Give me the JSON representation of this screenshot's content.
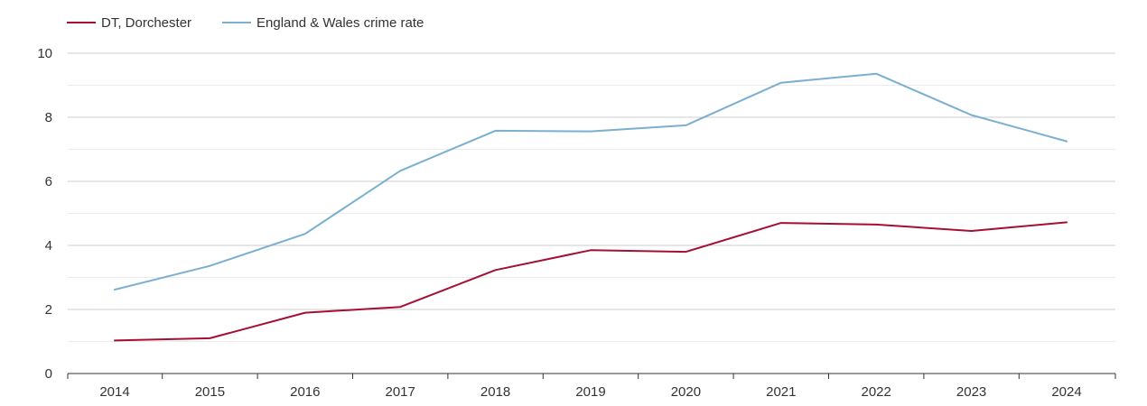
{
  "chart_data": {
    "type": "line",
    "title": "",
    "xlabel": "",
    "ylabel": "",
    "x": [
      2014,
      2015,
      2016,
      2017,
      2018,
      2019,
      2020,
      2021,
      2022,
      2023,
      2024
    ],
    "ylim": [
      0,
      10
    ],
    "yticks": [
      0,
      2,
      4,
      6,
      8,
      10
    ],
    "grid": true,
    "legend_position": "top-left",
    "series": [
      {
        "name": "DT, Dorchester",
        "color": "#a50f33",
        "values": [
          1.03,
          1.1,
          1.9,
          2.08,
          3.23,
          3.85,
          3.8,
          4.7,
          4.65,
          4.45,
          4.72
        ]
      },
      {
        "name": "England & Wales crime rate",
        "color": "#7aafd0",
        "values": [
          2.62,
          3.36,
          4.36,
          6.33,
          7.58,
          7.56,
          7.75,
          9.08,
          9.36,
          8.07,
          7.25
        ]
      }
    ]
  }
}
